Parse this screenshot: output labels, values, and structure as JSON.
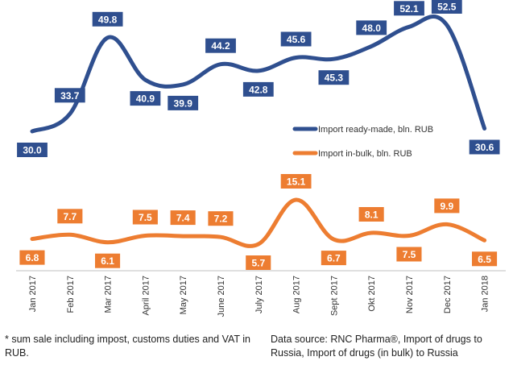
{
  "chart_data": {
    "type": "line",
    "title": "",
    "xlabel": "",
    "ylabel": "",
    "categories": [
      "Jan 2017",
      "Feb 2017",
      "Mar 2017",
      "April 2017",
      "May 2017",
      "June 2017",
      "July 2017",
      "Aug 2017",
      "Sept 2017",
      "Okt 2017",
      "Nov 2017",
      "Dec 2017",
      "Jan 2018"
    ],
    "series": [
      {
        "name": "Import ready-made, bln. RUB",
        "color": "#2f4f8f",
        "values": [
          30.0,
          33.7,
          49.8,
          40.9,
          39.9,
          44.2,
          42.8,
          45.6,
          45.3,
          48.0,
          52.1,
          52.5,
          30.6
        ],
        "labels": [
          "30.0",
          "33.7",
          "49.8",
          "40.9",
          "39.9",
          "44.2",
          "42.8",
          "45.6",
          "45.3",
          "48.0",
          "52.1",
          "52.5",
          "30.6"
        ]
      },
      {
        "name": "Import in-bulk, bln. RUB",
        "color": "#ed7d31",
        "values": [
          6.8,
          7.7,
          6.1,
          7.5,
          7.4,
          7.2,
          5.7,
          15.1,
          6.7,
          8.1,
          7.5,
          9.9,
          6.5
        ],
        "labels": [
          "6.8",
          "7.7",
          "6.1",
          "7.5",
          "7.4",
          "7.2",
          "5.7",
          "15.1",
          "6.7",
          "8.1",
          "7.5",
          "9.9",
          "6.5"
        ]
      }
    ],
    "legend_position": "right",
    "grid": false
  },
  "footnotes": {
    "left": "* sum sale including impost, customs duties and VAT in RUB.",
    "right": "Data source: RNC Pharma®, Import of drugs to Russia, Import of drugs (in bulk) to Russia"
  }
}
